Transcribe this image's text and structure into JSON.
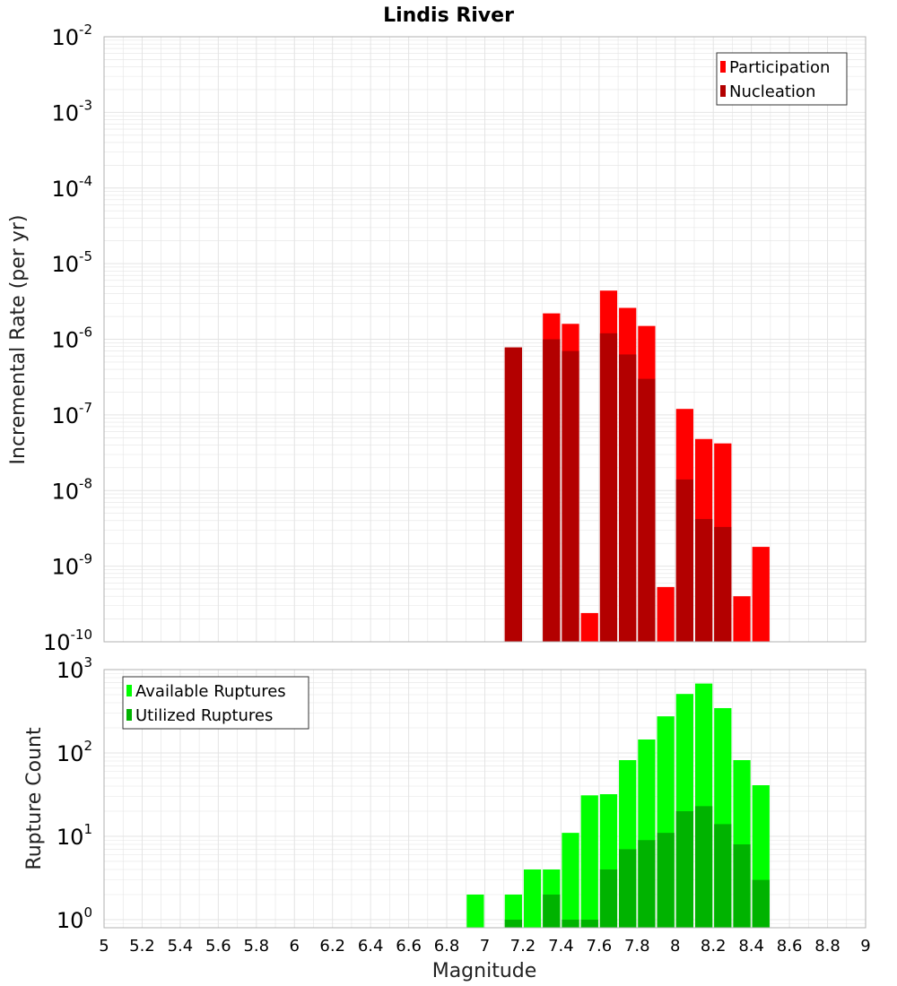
{
  "title": "Lindis River",
  "colors": {
    "participation": "#ff0000",
    "nucleation": "#b30000",
    "available": "#00ff00",
    "utilized": "#00b300",
    "grid": "#e4e4e4",
    "frame": "#b0b0b0"
  },
  "chart_data": [
    {
      "type": "bar",
      "panel": "rate",
      "ylabel": "Incremental Rate (per yr)",
      "yscale": "log",
      "ylim": [
        1e-10,
        0.01
      ],
      "xlim": [
        5,
        9
      ],
      "bin_width": 0.1,
      "grid": true,
      "legend_position": "top-right",
      "yticks": [
        {
          "base": "10",
          "exp": "-10"
        },
        {
          "base": "10",
          "exp": "-9"
        },
        {
          "base": "10",
          "exp": "-8"
        },
        {
          "base": "10",
          "exp": "-7"
        },
        {
          "base": "10",
          "exp": "-6"
        },
        {
          "base": "10",
          "exp": "-5"
        },
        {
          "base": "10",
          "exp": "-4"
        },
        {
          "base": "10",
          "exp": "-3"
        },
        {
          "base": "10",
          "exp": "-2"
        }
      ],
      "series": [
        {
          "name": "Participation",
          "color_key": "participation",
          "x": [
            7.15,
            7.35,
            7.45,
            7.55,
            7.65,
            7.75,
            7.85,
            7.95,
            8.05,
            8.15,
            8.25,
            8.35,
            8.45
          ],
          "values": [
            7.8e-07,
            2.2e-06,
            1.6e-06,
            2.4e-10,
            4.4e-06,
            2.6e-06,
            1.5e-06,
            5.3e-10,
            1.2e-07,
            4.8e-08,
            4.2e-08,
            4e-10,
            1.8e-09
          ]
        },
        {
          "name": "Nucleation",
          "color_key": "nucleation",
          "x": [
            7.15,
            7.35,
            7.45,
            7.65,
            7.75,
            7.85,
            8.05,
            8.15,
            8.25
          ],
          "values": [
            7.8e-07,
            1e-06,
            7e-07,
            1.2e-06,
            6.3e-07,
            3e-07,
            1.4e-08,
            4.2e-09,
            3.3e-09
          ]
        }
      ]
    },
    {
      "type": "bar",
      "panel": "count",
      "ylabel": "Rupture Count",
      "xlabel": "Magnitude",
      "yscale": "log",
      "ylim": [
        0.8,
        1000
      ],
      "xlim": [
        5,
        9
      ],
      "bin_width": 0.1,
      "grid": true,
      "legend_position": "top-left",
      "yticks": [
        {
          "base": "10",
          "exp": "0"
        },
        {
          "base": "10",
          "exp": "1"
        },
        {
          "base": "10",
          "exp": "2"
        },
        {
          "base": "10",
          "exp": "3"
        }
      ],
      "xticks": [
        "5",
        "5.2",
        "5.4",
        "5.6",
        "5.8",
        "6",
        "6.2",
        "6.4",
        "6.6",
        "6.8",
        "7",
        "7.2",
        "7.4",
        "7.6",
        "7.8",
        "8",
        "8.2",
        "8.4",
        "8.6",
        "8.8",
        "9"
      ],
      "series": [
        {
          "name": "Available Ruptures",
          "color_key": "available",
          "x": [
            6.95,
            7.15,
            7.25,
            7.35,
            7.45,
            7.55,
            7.65,
            7.75,
            7.85,
            7.95,
            8.05,
            8.15,
            8.25,
            8.35,
            8.45
          ],
          "values": [
            2,
            2,
            4,
            4,
            11,
            31,
            32,
            82,
            145,
            275,
            510,
            680,
            345,
            82,
            41
          ]
        },
        {
          "name": "Utilized Ruptures",
          "color_key": "utilized",
          "x": [
            7.15,
            7.35,
            7.45,
            7.55,
            7.65,
            7.75,
            7.85,
            7.95,
            8.05,
            8.15,
            8.25,
            8.35,
            8.45
          ],
          "values": [
            1,
            2,
            1,
            1,
            4,
            7,
            9,
            11,
            20,
            23,
            14,
            8,
            3
          ]
        }
      ]
    }
  ]
}
